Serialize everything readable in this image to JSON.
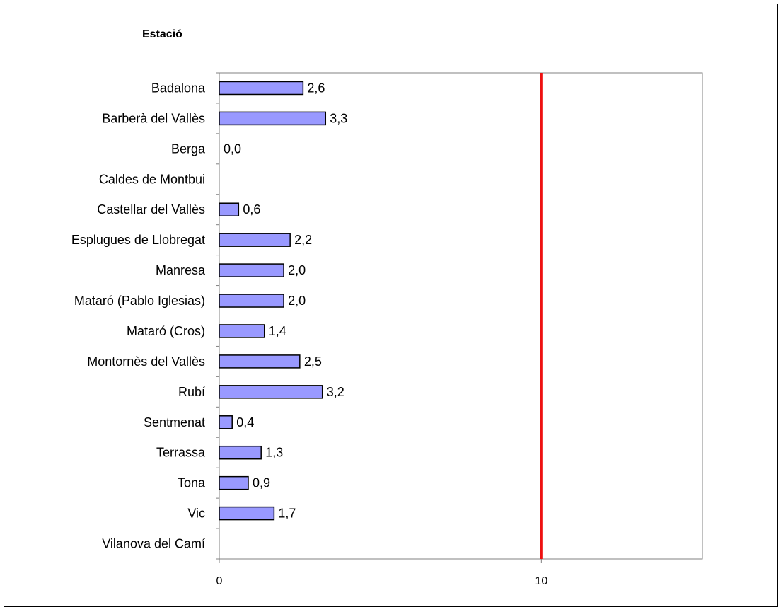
{
  "chart_data": {
    "type": "bar",
    "orientation": "horizontal",
    "title": "Estació",
    "categories": [
      "Badalona",
      "Barberà del Vallès",
      "Berga",
      "Caldes de Montbui",
      "Castellar del Vallès",
      "Esplugues de Llobregat",
      "Manresa",
      "Mataró (Pablo Iglesias)",
      "Mataró (Cros)",
      "Montornès del Vallès",
      "Rubí",
      "Sentmenat",
      "Terrassa",
      "Tona",
      "Vic",
      "Vilanova del Camí"
    ],
    "values": [
      2.6,
      3.3,
      0.0,
      null,
      0.6,
      2.2,
      2.0,
      2.0,
      1.4,
      2.5,
      3.2,
      0.4,
      1.3,
      0.9,
      1.7,
      null
    ],
    "value_labels": [
      "2,6",
      "3,3",
      "0,0",
      "",
      "0,6",
      "2,2",
      "2,0",
      "2,0",
      "1,4",
      "2,5",
      "3,2",
      "0,4",
      "1,3",
      "0,9",
      "1,7",
      ""
    ],
    "xlim": [
      0,
      15
    ],
    "xticks": [
      0,
      10
    ],
    "xtick_labels": [
      "0",
      "10"
    ],
    "reference_line": {
      "value": 10,
      "color": "#ee1111"
    },
    "bar_color": "#9999ff",
    "bar_edge_color": "#000000",
    "plot_border_color": "#808080",
    "grid": false
  }
}
